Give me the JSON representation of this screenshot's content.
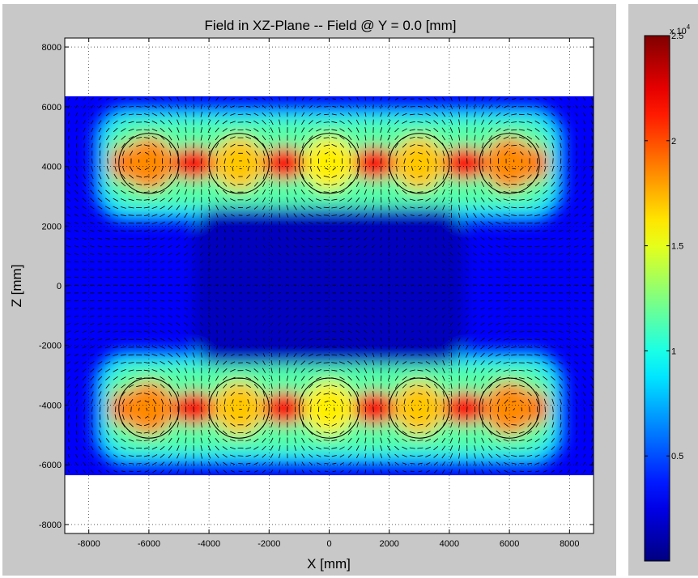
{
  "chart_data": {
    "type": "heatmap",
    "title": "Field in XZ-Plane -- Field @ Y = 0.0 [mm]",
    "xlabel": "X [mm]",
    "ylabel": "Z [mm]",
    "xlim": [
      -8800,
      8800
    ],
    "ylim": [
      -8300,
      8300
    ],
    "data_extent": {
      "x": [
        -8800,
        8800
      ],
      "z": [
        -6350,
        6350
      ]
    },
    "x_ticks": [
      -8000,
      -6000,
      -4000,
      -2000,
      0,
      2000,
      4000,
      6000,
      8000
    ],
    "y_ticks": [
      -8000,
      -6000,
      -4000,
      -2000,
      0,
      2000,
      4000,
      6000,
      8000
    ],
    "grid": true,
    "colormap": "jet",
    "colorbar": {
      "min": 0,
      "max": 25000,
      "multiplier_label": "x 10",
      "multiplier_exponent": "4",
      "ticks": [
        {
          "value": 5000,
          "label": "0.5"
        },
        {
          "value": 10000,
          "label": "1"
        },
        {
          "value": 15000,
          "label": "1.5"
        },
        {
          "value": 20000,
          "label": "2"
        },
        {
          "value": 25000,
          "label": "2.5"
        }
      ]
    },
    "conductors": [
      {
        "x": -6000,
        "z": 4100,
        "radius": 1000
      },
      {
        "x": -3000,
        "z": 4100,
        "radius": 1000
      },
      {
        "x": 0,
        "z": 4100,
        "radius": 1000
      },
      {
        "x": 3000,
        "z": 4100,
        "radius": 1000
      },
      {
        "x": 6000,
        "z": 4100,
        "radius": 1000
      },
      {
        "x": -6000,
        "z": -4100,
        "radius": 1000
      },
      {
        "x": -3000,
        "z": -4100,
        "radius": 1000
      },
      {
        "x": 0,
        "z": -4100,
        "radius": 1000
      },
      {
        "x": 3000,
        "z": -4100,
        "radius": 1000
      },
      {
        "x": 6000,
        "z": -4100,
        "radius": 1000
      }
    ],
    "conductor_field_value": [
      18500,
      17000,
      16000,
      17000,
      18500
    ],
    "gap_field_value": 22000,
    "vector_field": true
  },
  "colors": {
    "frame_background": "#c8c8c8",
    "grid_line": "#000000",
    "conductor_outline": "#000000",
    "arrow": "#000000"
  }
}
